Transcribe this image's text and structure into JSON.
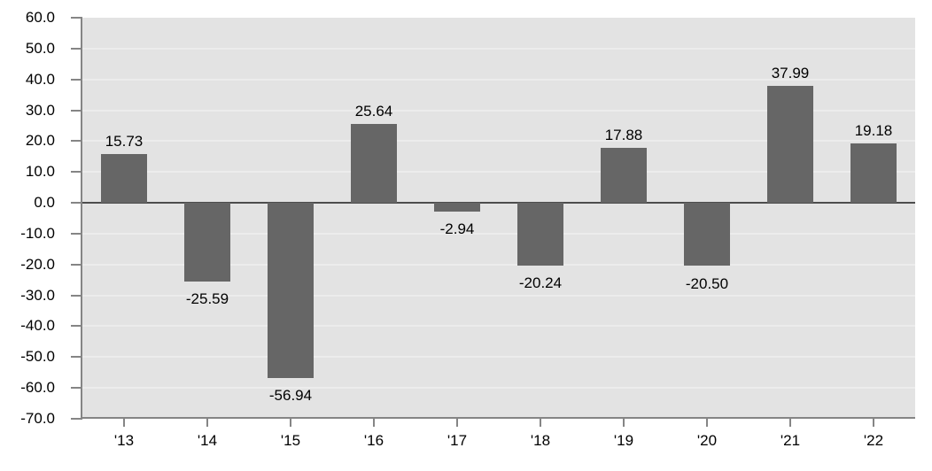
{
  "chart_data": {
    "type": "bar",
    "categories": [
      "'13",
      "'14",
      "'15",
      "'16",
      "'17",
      "'18",
      "'19",
      "'20",
      "'21",
      "'22"
    ],
    "values": [
      15.73,
      -25.59,
      -56.94,
      25.64,
      -2.94,
      -20.24,
      17.88,
      -20.5,
      37.99,
      19.18
    ],
    "value_labels": [
      "15.73",
      "-25.59",
      "-56.94",
      "25.64",
      "-2.94",
      "-20.24",
      "17.88",
      "-20.50",
      "37.99",
      "19.18"
    ],
    "title": "",
    "xlabel": "",
    "ylabel": "",
    "ylim": [
      -70,
      60
    ],
    "ytick_step": 10,
    "ytick_labels": [
      "60.0",
      "50.0",
      "40.0",
      "30.0",
      "20.0",
      "10.0",
      "0.0",
      "-10.0",
      "-20.0",
      "-30.0",
      "-40.0",
      "-50.0",
      "-60.0",
      "-70.0"
    ],
    "grid": true,
    "legend_position": "none"
  },
  "colors": {
    "bar": "#666666",
    "plot_bg": "#e3e3e3",
    "gridline": "#ececec",
    "zero_line": "#4d4d4d",
    "axis": "#858585",
    "text": "#000000",
    "page_bg": "#ffffff"
  }
}
